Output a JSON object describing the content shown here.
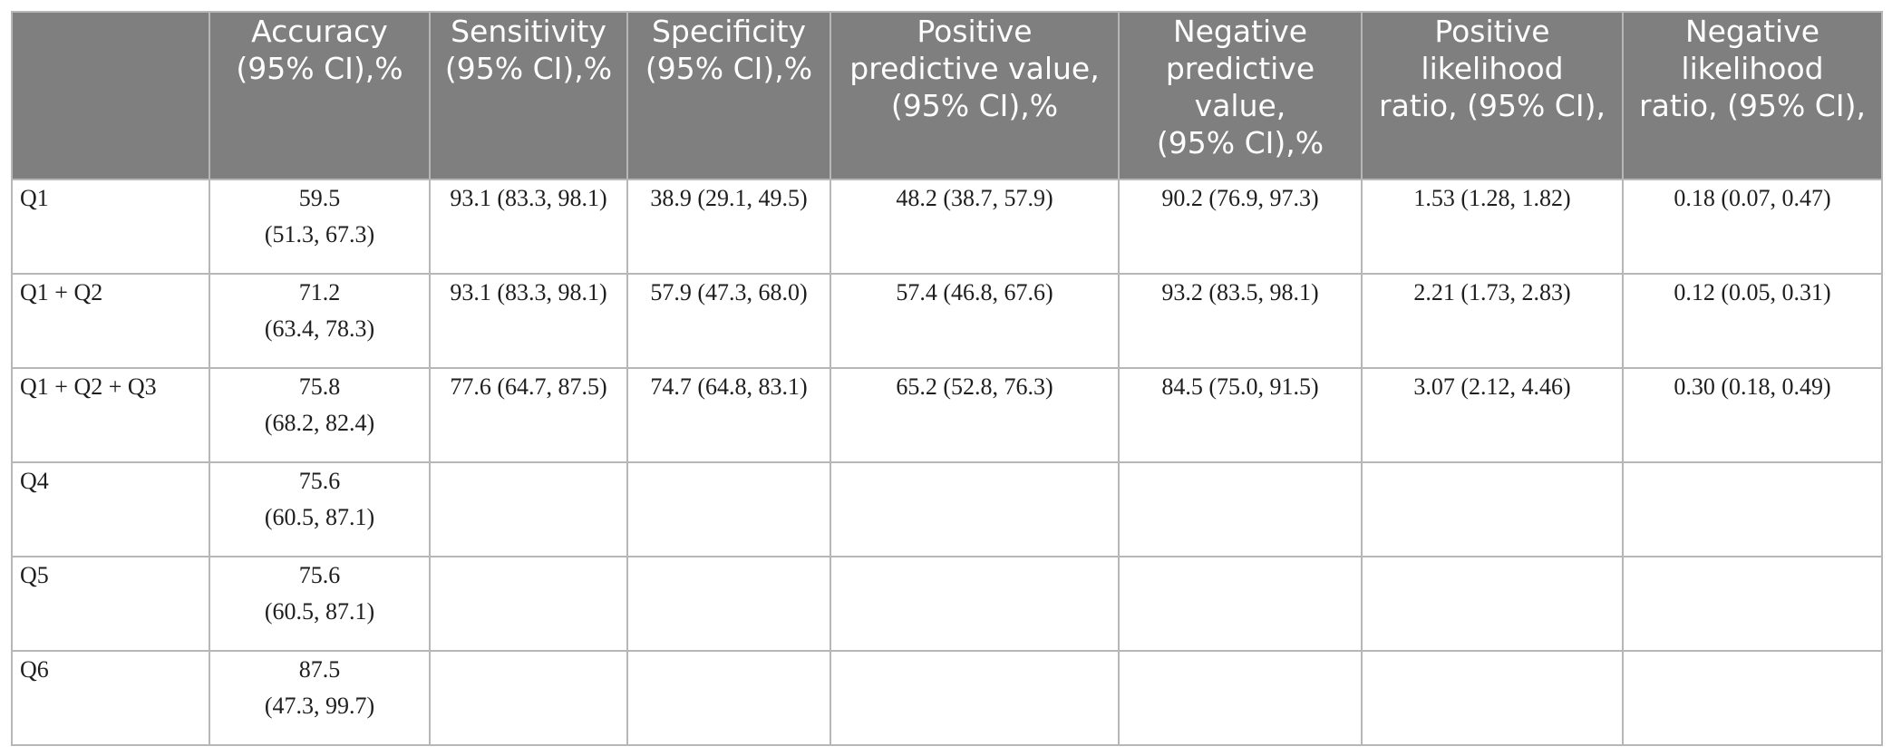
{
  "table": {
    "header": [
      [],
      [
        "Accuracy",
        "(95% CI),%"
      ],
      [
        "Sensitivity",
        "(95% CI),%"
      ],
      [
        "Specificity",
        "(95% CI),%"
      ],
      [
        "Positive",
        "predictive value,",
        "(95% CI),%"
      ],
      [
        "Negative",
        "predictive",
        "value,",
        "(95% CI),%"
      ],
      [
        "Positive",
        "likelihood",
        "ratio, (95% CI),"
      ],
      [
        "Negative",
        "likelihood",
        "ratio, (95% CI),"
      ]
    ],
    "rows": [
      {
        "label": "Q1",
        "accuracy": [
          "59.5",
          "(51.3, 67.3)"
        ],
        "sensitivity": "93.1 (83.3, 98.1)",
        "specificity": "38.9 (29.1, 49.5)",
        "ppv": "48.2 (38.7, 57.9)",
        "npv": "90.2 (76.9, 97.3)",
        "plr": "1.53 (1.28, 1.82)",
        "nlr": "0.18 (0.07, 0.47)"
      },
      {
        "label": "Q1 + Q2",
        "accuracy": [
          "71.2",
          "(63.4, 78.3)"
        ],
        "sensitivity": "93.1 (83.3, 98.1)",
        "specificity": "57.9 (47.3, 68.0)",
        "ppv": "57.4 (46.8, 67.6)",
        "npv": "93.2 (83.5, 98.1)",
        "plr": "2.21 (1.73, 2.83)",
        "nlr": "0.12 (0.05, 0.31)"
      },
      {
        "label": "Q1 + Q2 + Q3",
        "accuracy": [
          "75.8",
          "(68.2, 82.4)"
        ],
        "sensitivity": "77.6 (64.7, 87.5)",
        "specificity": "74.7 (64.8, 83.1)",
        "ppv": "65.2 (52.8, 76.3)",
        "npv": "84.5 (75.0, 91.5)",
        "plr": "3.07 (2.12, 4.46)",
        "nlr": "0.30 (0.18, 0.49)"
      },
      {
        "label": "Q4",
        "accuracy": [
          "75.6",
          "(60.5, 87.1)"
        ],
        "sensitivity": "",
        "specificity": "",
        "ppv": "",
        "npv": "",
        "plr": "",
        "nlr": ""
      },
      {
        "label": "Q5",
        "accuracy": [
          "75.6",
          "(60.5, 87.1)"
        ],
        "sensitivity": "",
        "specificity": "",
        "ppv": "",
        "npv": "",
        "plr": "",
        "nlr": ""
      },
      {
        "label": "Q6",
        "accuracy": [
          "87.5",
          "(47.3, 99.7)"
        ],
        "sensitivity": "",
        "specificity": "",
        "ppv": "",
        "npv": "",
        "plr": "",
        "nlr": ""
      }
    ]
  }
}
